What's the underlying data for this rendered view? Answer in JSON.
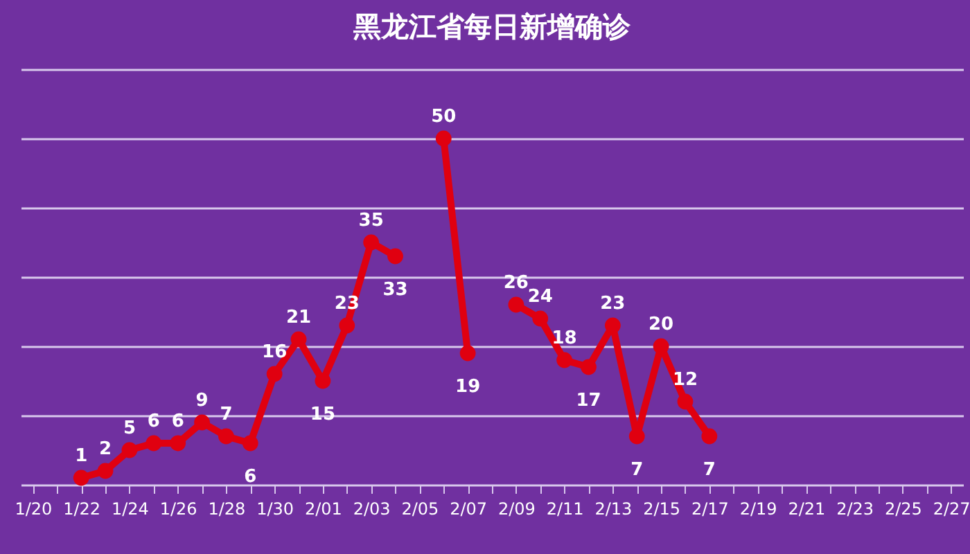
{
  "chart_data": {
    "type": "line",
    "title": "黑龙江省每日新增确诊",
    "categories": [
      "1/20",
      null,
      "1/22",
      null,
      "1/24",
      null,
      "1/26",
      null,
      "1/28",
      null,
      "1/30",
      null,
      "2/01",
      null,
      "2/03",
      null,
      "2/05",
      null,
      "2/07",
      null,
      "2/09",
      null,
      "2/11",
      null,
      "2/13",
      null,
      "2/15",
      null,
      "2/17",
      null,
      "2/19",
      null,
      "2/21",
      null,
      "2/23",
      null,
      "2/25",
      null,
      "2/27"
    ],
    "series": [
      {
        "color": "#e00010",
        "values": [
          null,
          null,
          1,
          2,
          5,
          6,
          6,
          9,
          7,
          6,
          16,
          21,
          15,
          23,
          35,
          33,
          null,
          50,
          19,
          null,
          26,
          24,
          18,
          17,
          23,
          7,
          20,
          12,
          7,
          null,
          null,
          null,
          null,
          null,
          null,
          null,
          null,
          null,
          null
        ]
      }
    ],
    "ylim": [
      0,
      60
    ],
    "yticks": [
      {
        "value": 0,
        "label": null
      },
      {
        "value": 10,
        "label": null
      },
      {
        "value": 20,
        "label": null
      },
      {
        "value": 30,
        "label": null
      },
      {
        "value": 40,
        "label": null
      },
      {
        "value": 50,
        "label": null
      },
      {
        "value": 60,
        "label": null
      }
    ],
    "grid": "y",
    "tick_labels": "x",
    "marker": "circle",
    "data_labels": true
  }
}
